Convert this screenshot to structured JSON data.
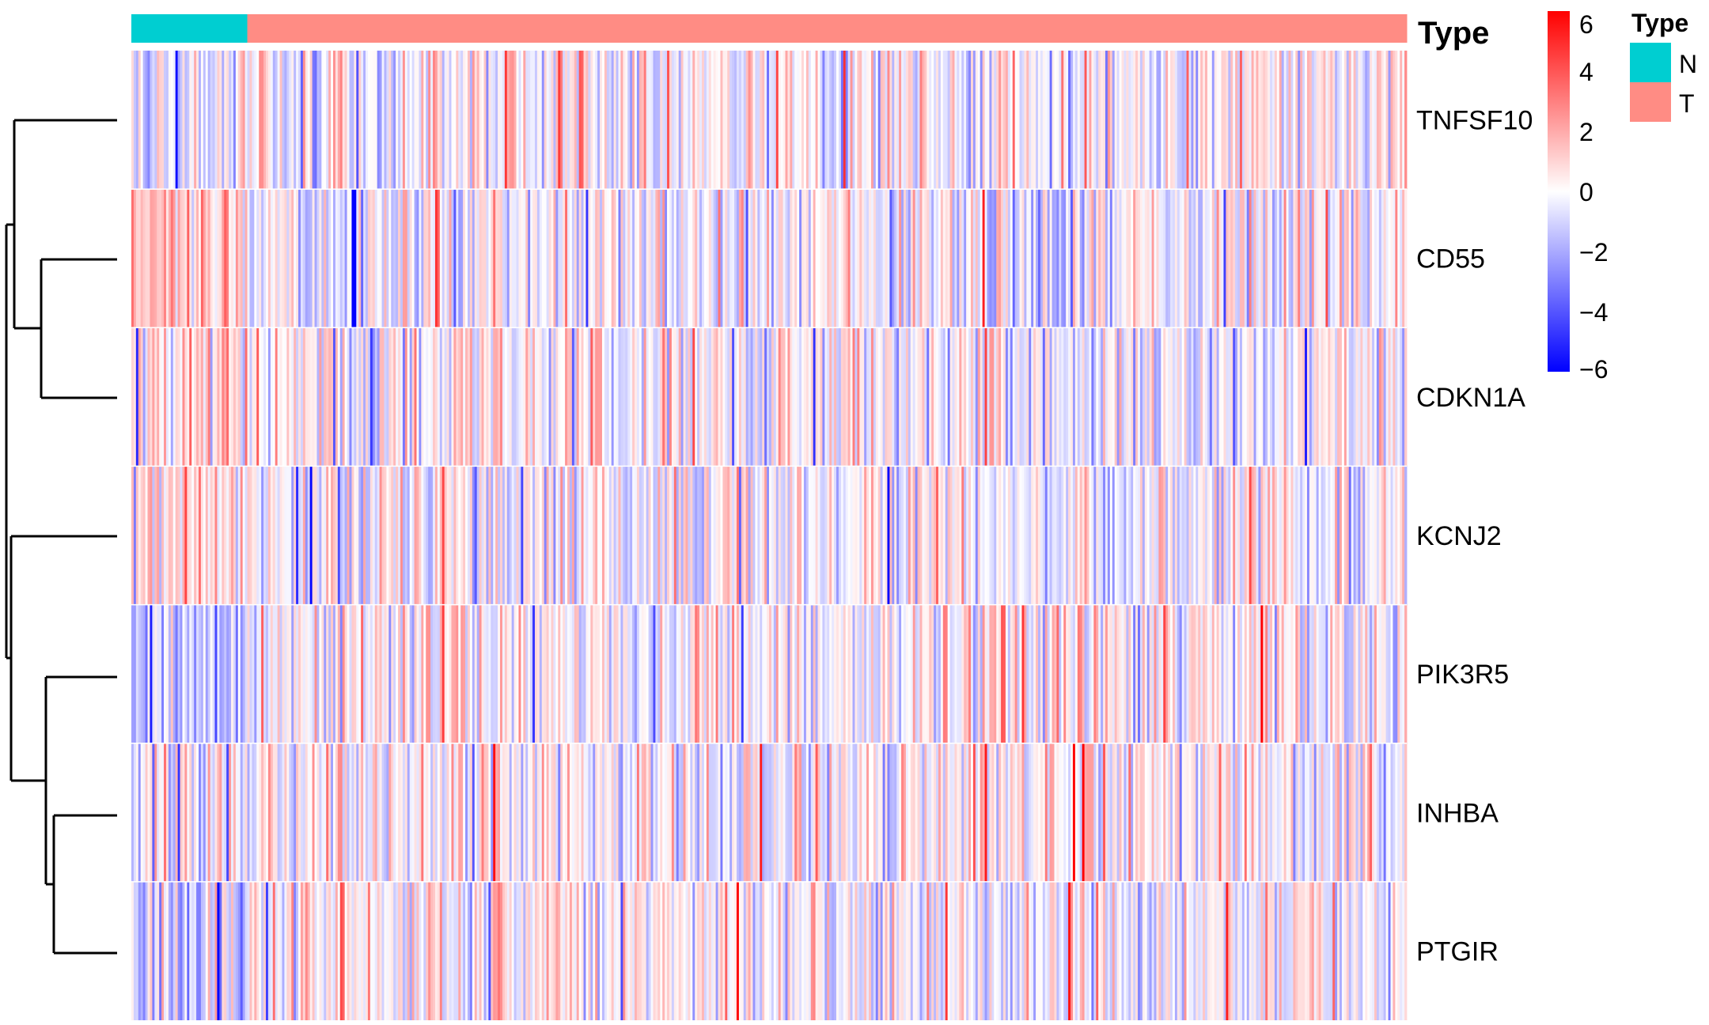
{
  "chart_data": {
    "type": "heatmap",
    "title": "",
    "annotation": {
      "title": "Type",
      "legend_title": "Type",
      "groups": [
        {
          "label": "N",
          "count": 50,
          "color": "#00CED1"
        },
        {
          "label": "T",
          "count": 500,
          "color": "#FF8C84"
        }
      ]
    },
    "rows": [
      "TNFSF10",
      "CD55",
      "CDKN1A",
      "KCNJ2",
      "PIK3R5",
      "INHBA",
      "PTGIR"
    ],
    "row_tendency": [
      {
        "gene": "TNFSF10",
        "mean_N": -0.4,
        "mean_T": 0.1,
        "spread": 1.4
      },
      {
        "gene": "CD55",
        "mean_N": 1.2,
        "mean_T": -0.15,
        "spread": 1.4
      },
      {
        "gene": "CDKN1A",
        "mean_N": 0.9,
        "mean_T": -0.1,
        "spread": 1.4
      },
      {
        "gene": "KCNJ2",
        "mean_N": 0.9,
        "mean_T": -0.1,
        "spread": 1.4
      },
      {
        "gene": "PIK3R5",
        "mean_N": -1.2,
        "mean_T": 0.15,
        "spread": 1.4
      },
      {
        "gene": "INHBA",
        "mean_N": -0.5,
        "mean_T": 0.1,
        "spread": 1.4
      },
      {
        "gene": "PTGIR",
        "mean_N": -0.9,
        "mean_T": 0.1,
        "spread": 1.4
      }
    ],
    "value_range": [
      -6,
      6
    ],
    "colorbar": {
      "low": "#0000FF",
      "mid": "#FFFFFF",
      "high": "#FF0000",
      "ticks": [
        "6",
        "4",
        "2",
        "0",
        "−2",
        "−4",
        "−6"
      ],
      "tick_values": [
        6,
        4,
        2,
        0,
        -2,
        -4,
        -6
      ]
    },
    "row_dendrogram": true,
    "legend_placement": "top-right"
  }
}
